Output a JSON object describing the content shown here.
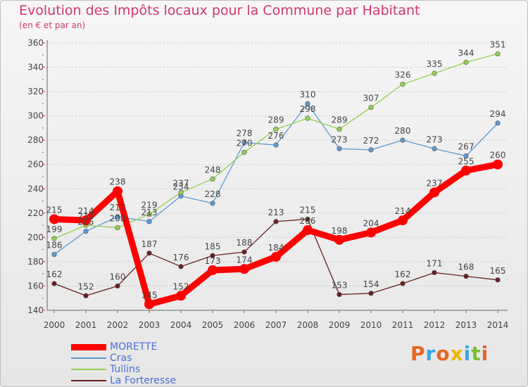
{
  "title": "Evolution des Impôts locaux pour la Commune par Habitant",
  "subtitle": "(en € et par an)",
  "logo": {
    "text": "Proxiti",
    "letters": [
      {
        "ch": "P",
        "color": "#e6661e"
      },
      {
        "ch": "r",
        "color": "#3da7e0"
      },
      {
        "ch": "o",
        "color": "#e6661e"
      },
      {
        "ch": "x",
        "color": "#f2b400"
      },
      {
        "ch": "i",
        "color": "#3da7e0"
      },
      {
        "ch": "t",
        "color": "#7cbf2e"
      },
      {
        "ch": "i",
        "color": "#e6661e"
      }
    ]
  },
  "chart_data": {
    "type": "line",
    "title": "Evolution des Impôts locaux pour la Commune par Habitant",
    "subtitle": "(en € et par an)",
    "xlabel": "",
    "ylabel": "",
    "x": [
      "2000",
      "2001",
      "2002",
      "2003",
      "2004",
      "2005",
      "2006",
      "2007",
      "2008",
      "2009",
      "2010",
      "2011",
      "2012",
      "2013",
      "2014"
    ],
    "ylim": [
      140,
      360
    ],
    "yticks": [
      140,
      160,
      180,
      200,
      220,
      240,
      260,
      280,
      300,
      320,
      340,
      360
    ],
    "grid": "horizontal dashed",
    "legend": "bottom-left",
    "series": [
      {
        "name": "MORETTE",
        "color": "#ff0000",
        "emphasis": true,
        "values": [
          215,
          214,
          238,
          145,
          152,
          173,
          174,
          184,
          206,
          198,
          204,
          214,
          237,
          255,
          260
        ]
      },
      {
        "name": "Cras",
        "color": "#5b9bd5",
        "values": [
          186,
          205,
          217,
          213,
          234,
          228,
          278,
          276,
          310,
          273,
          272,
          280,
          273,
          267,
          294
        ]
      },
      {
        "name": "Tullins",
        "color": "#92d050",
        "values": [
          199,
          210,
          208,
          219,
          237,
          248,
          270,
          289,
          298,
          289,
          307,
          326,
          335,
          344,
          351
        ]
      },
      {
        "name": "La Forteresse",
        "color": "#6b1f1f",
        "values": [
          162,
          152,
          160,
          187,
          176,
          185,
          188,
          213,
          215,
          153,
          154,
          162,
          171,
          168,
          165
        ]
      }
    ]
  }
}
